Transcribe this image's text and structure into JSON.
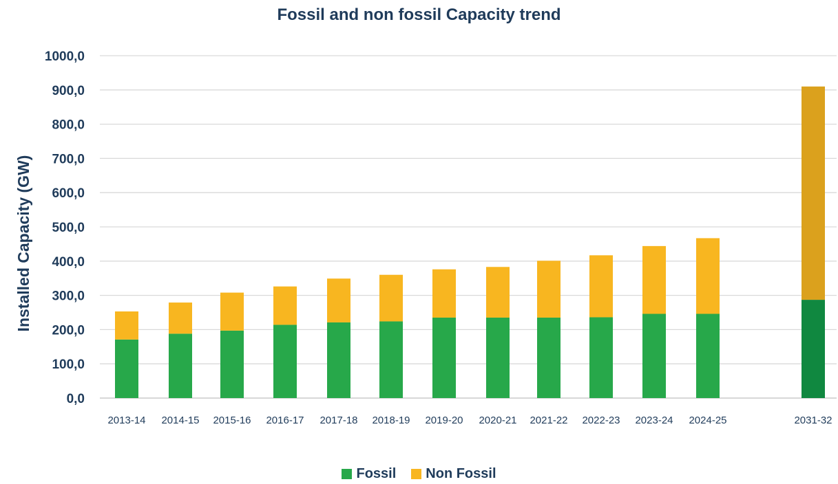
{
  "chart_data": {
    "type": "bar",
    "stacked": true,
    "title": "Fossil and non fossil Capacity trend",
    "xlabel": "",
    "ylabel": "Installed Capacity (GW)",
    "ylim": [
      0,
      1000
    ],
    "yticks": [
      "0,0",
      "100,0",
      "200,0",
      "300,0",
      "400,0",
      "500,0",
      "600,0",
      "700,0",
      "800,0",
      "900,0",
      "1000,0"
    ],
    "grid": true,
    "legend_position": "bottom",
    "categories": [
      "2013-14",
      "2014-15",
      "2015-16",
      "2016-17",
      "2017-18",
      "2018-19",
      "2019-20",
      "2020-21",
      "2021-22",
      "2022-23",
      "2023-24",
      "2024-25",
      "2031-32"
    ],
    "series": [
      {
        "name": "Fossil",
        "color": "#27a84a",
        "highlight_color": "#108840",
        "values": [
          171,
          188,
          197,
          214,
          221,
          224,
          235,
          235,
          235,
          236,
          246,
          246,
          287
        ]
      },
      {
        "name": "Non Fossil",
        "color": "#f8b620",
        "highlight_color": "#dba11d",
        "values": [
          82,
          91,
          111,
          112,
          128,
          136,
          141,
          148,
          166,
          181,
          198,
          221,
          623
        ]
      }
    ]
  }
}
